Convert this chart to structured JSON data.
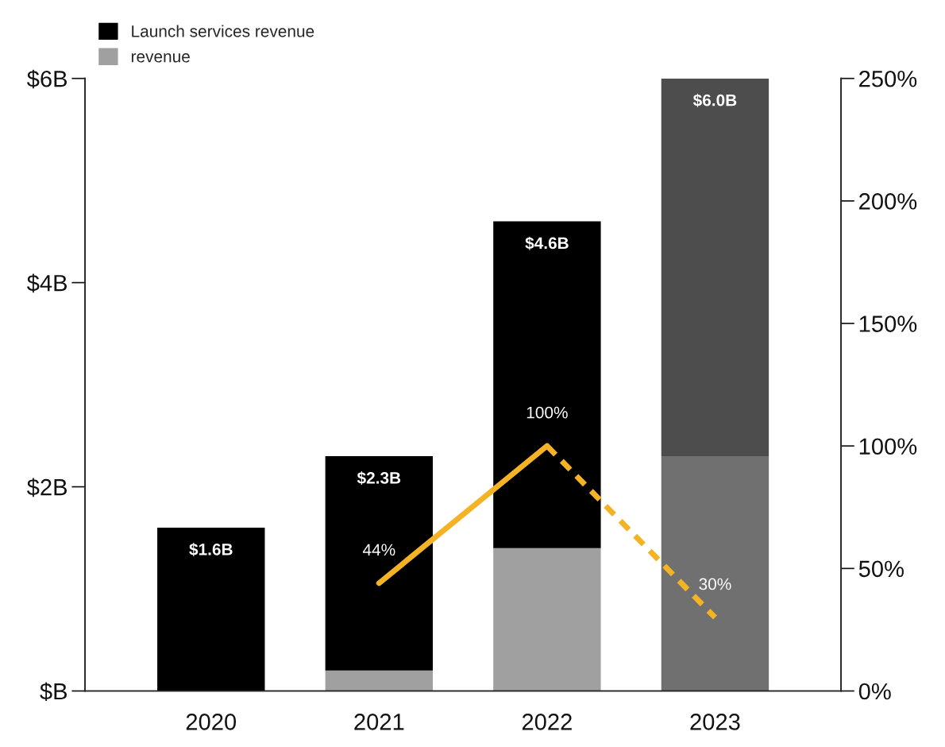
{
  "chart_data": {
    "type": "bar",
    "stacked": true,
    "categories": [
      "2020",
      "2021",
      "2022",
      "2023"
    ],
    "series": [
      {
        "name": "revenue",
        "color": "#a0a0a0",
        "colors": [
          "#a0a0a0",
          "#a0a0a0",
          "#a0a0a0",
          "#707070"
        ],
        "values": [
          0,
          0.2,
          1.4,
          2.3
        ]
      },
      {
        "name": "Launch services revenue",
        "color": "#000000",
        "colors": [
          "#000000",
          "#000000",
          "#000000",
          "#4d4d4d"
        ],
        "values": [
          1.6,
          2.1,
          3.2,
          3.7
        ]
      },
      {
        "type": "line",
        "axis": "y2",
        "color": "#f4b324",
        "line_style": "solid",
        "values": [
          null,
          44,
          100,
          null
        ],
        "value_labels": [
          null,
          "44%",
          "100%",
          null
        ]
      },
      {
        "type": "line",
        "axis": "y2",
        "color": "#f4b324",
        "line_style": "dashed",
        "values": [
          null,
          null,
          100,
          30
        ],
        "value_labels": [
          null,
          null,
          null,
          "30%"
        ]
      }
    ],
    "totals": [
      "$1.6B",
      "$2.3B",
      "$4.6B",
      "$6.0B"
    ],
    "ylim": [
      0,
      6
    ],
    "yticks": [
      {
        "value": 0,
        "label": "$B"
      },
      {
        "value": 2,
        "label": "$2B"
      },
      {
        "value": 4,
        "label": "$4B"
      },
      {
        "value": 6,
        "label": "$6B"
      }
    ],
    "y2lim": [
      0,
      250
    ],
    "y2ticks": [
      {
        "value": 0,
        "label": "0%"
      },
      {
        "value": 50,
        "label": "50%"
      },
      {
        "value": 100,
        "label": "100%"
      },
      {
        "value": 150,
        "label": "150%"
      },
      {
        "value": 200,
        "label": "200%"
      },
      {
        "value": 250,
        "label": "250%"
      }
    ],
    "grid": false,
    "legend": "top left"
  }
}
